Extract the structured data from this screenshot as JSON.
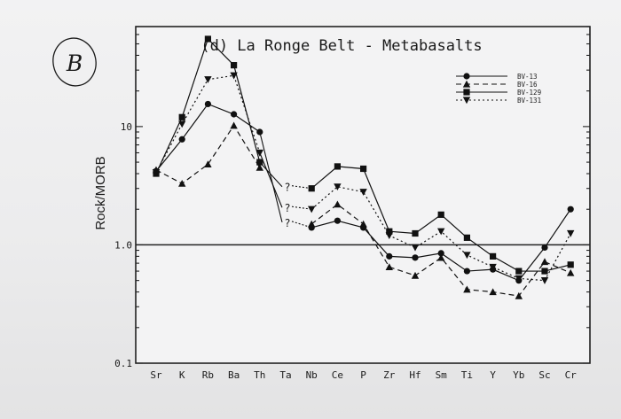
{
  "annotation": {
    "circle_letter": "B"
  },
  "chart_data": {
    "type": "line",
    "title": "(d) La Ronge Belt - Metabasalts",
    "ylabel": "Rock/MORB",
    "xlabel": "",
    "yscale": "log",
    "ylim": [
      0.1,
      70
    ],
    "yticks": [
      {
        "value": 0.1,
        "label": "0.1"
      },
      {
        "value": 1.0,
        "label": "1.0"
      },
      {
        "value": 10,
        "label": "10"
      }
    ],
    "reference_line": 1.0,
    "grid": false,
    "legend_position": "top-right",
    "categories": [
      "Sr",
      "K",
      "Rb",
      "Ba",
      "Th",
      "Ta",
      "Nb",
      "Ce",
      "P",
      "Zr",
      "Hf",
      "Sm",
      "Ti",
      "Y",
      "Yb",
      "Sc",
      "Cr"
    ],
    "question_marks": [
      {
        "category": "Ta",
        "value": 3.0,
        "label": "?"
      },
      {
        "category": "Ta",
        "value": 2.0,
        "label": "?"
      },
      {
        "category": "Ta",
        "value": 1.5,
        "label": "?"
      }
    ],
    "series": [
      {
        "name": "BV-13",
        "marker": "circle",
        "dash": "solid",
        "values": [
          4.2,
          7.8,
          15.5,
          12.7,
          9.0,
          null,
          1.4,
          1.6,
          1.4,
          0.8,
          0.78,
          0.85,
          0.6,
          0.62,
          0.5,
          0.95,
          2.0
        ]
      },
      {
        "name": "BV-16",
        "marker": "triangle-up",
        "dash": "dashed",
        "values": [
          4.3,
          3.3,
          4.8,
          10.2,
          4.5,
          null,
          1.5,
          2.2,
          1.5,
          0.65,
          0.55,
          0.78,
          0.42,
          0.4,
          0.37,
          0.72,
          0.58
        ]
      },
      {
        "name": "BV-129",
        "marker": "square",
        "dash": "solid",
        "values": [
          4.0,
          12.0,
          55.0,
          33.0,
          5.0,
          null,
          3.0,
          4.6,
          4.4,
          1.3,
          1.25,
          1.8,
          1.15,
          0.8,
          0.6,
          0.6,
          0.68
        ]
      },
      {
        "name": "BV-131",
        "marker": "triangle-down",
        "dash": "dotted",
        "values": [
          4.1,
          10.5,
          25.0,
          27.0,
          6.0,
          null,
          2.0,
          3.1,
          2.8,
          1.2,
          0.95,
          1.3,
          0.82,
          0.65,
          0.52,
          0.5,
          1.25
        ]
      }
    ]
  }
}
